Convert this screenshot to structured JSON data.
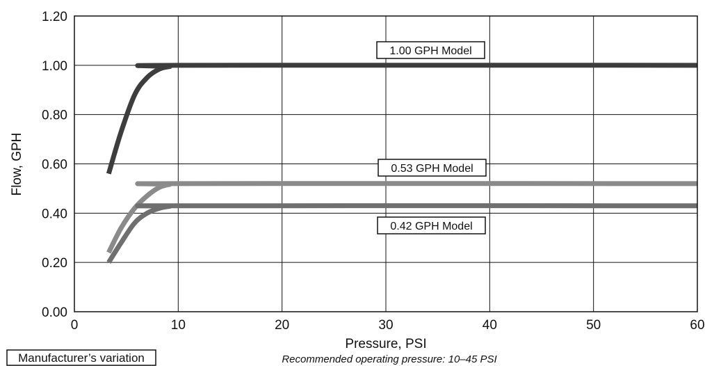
{
  "chart_data": {
    "type": "line",
    "xlabel": "Pressure, PSI",
    "ylabel": "Flow, GPH",
    "xlim": [
      0,
      60
    ],
    "ylim": [
      0,
      1.2
    ],
    "x_ticks": [
      "0",
      "10",
      "20",
      "30",
      "40",
      "50",
      "60"
    ],
    "y_ticks": [
      "0.00",
      "0.20",
      "0.40",
      "0.60",
      "0.80",
      "1.00",
      "1.20"
    ],
    "grid": true,
    "series": [
      {
        "name": "1.00 GPH Model",
        "color": "#3d3d3d",
        "x": [
          3.3,
          4.5,
          5.8,
          7,
          8.2,
          9.2,
          10,
          60
        ],
        "y": [
          0.56,
          0.73,
          0.88,
          0.95,
          0.985,
          0.995,
          1.0,
          1.0
        ]
      },
      {
        "name": "0.53 GPH Model",
        "color": "#8a8a8a",
        "x": [
          3.3,
          4.5,
          5.8,
          7,
          8.2,
          9.2,
          10,
          60
        ],
        "y": [
          0.24,
          0.34,
          0.42,
          0.47,
          0.505,
          0.517,
          0.52,
          0.52
        ]
      },
      {
        "name": "0.42 GPH Model",
        "color": "#6f6f6f",
        "x": [
          3.3,
          4.5,
          5.8,
          7,
          8.2,
          9.2,
          10,
          60
        ],
        "y": [
          0.2,
          0.28,
          0.36,
          0.4,
          0.42,
          0.428,
          0.43,
          0.43
        ]
      }
    ],
    "notes": {
      "variation_label": "Manufacturer’s variation",
      "recommended": "Recommended operating pressure: 10–45 PSI"
    }
  }
}
